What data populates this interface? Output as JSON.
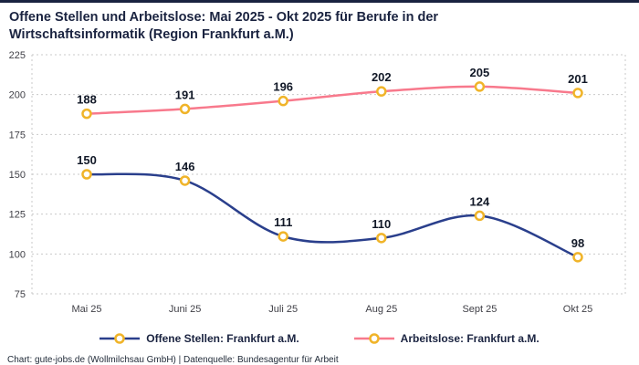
{
  "page": {
    "title": "Offene Stellen und Arbeitslose: Mai 2025 - Okt 2025 für Berufe in der Wirtschaftsinformatik (Region Frankfurt a.M.)",
    "footer": "Chart: gute-jobs.de (Wollmilchsau GmbH) | Datenquelle: Bundesagentur für Arbeit"
  },
  "colors": {
    "title_text": "#1a2340",
    "grid": "#c9c9c9",
    "tick_label": "#3f3f46",
    "data_label": "#111827"
  },
  "chart_data": {
    "type": "line",
    "title": "Offene Stellen und Arbeitslose: Mai 2025 - Okt 2025 für Berufe in der Wirtschaftsinformatik (Region Frankfurt a.M.)",
    "categories": [
      "Mai 25",
      "Juni 25",
      "Juli 25",
      "Aug 25",
      "Sept 25",
      "Okt 25"
    ],
    "series": [
      {
        "name": "Offene Stellen: Frankfurt a.M.",
        "color": "#2a3f8c",
        "values": [
          150,
          146,
          111,
          110,
          124,
          98
        ]
      },
      {
        "name": "Arbeitslose: Frankfurt a.M.",
        "color": "#f8798c",
        "values": [
          188,
          191,
          196,
          202,
          205,
          201
        ]
      }
    ],
    "ylim": [
      75,
      225
    ],
    "yticks": [
      75,
      100,
      125,
      150,
      175,
      200,
      225
    ],
    "grid": "horizontal-dotted",
    "legend_position": "bottom",
    "marker": {
      "fill": "#ffffff",
      "stroke": "#f0b429"
    }
  }
}
